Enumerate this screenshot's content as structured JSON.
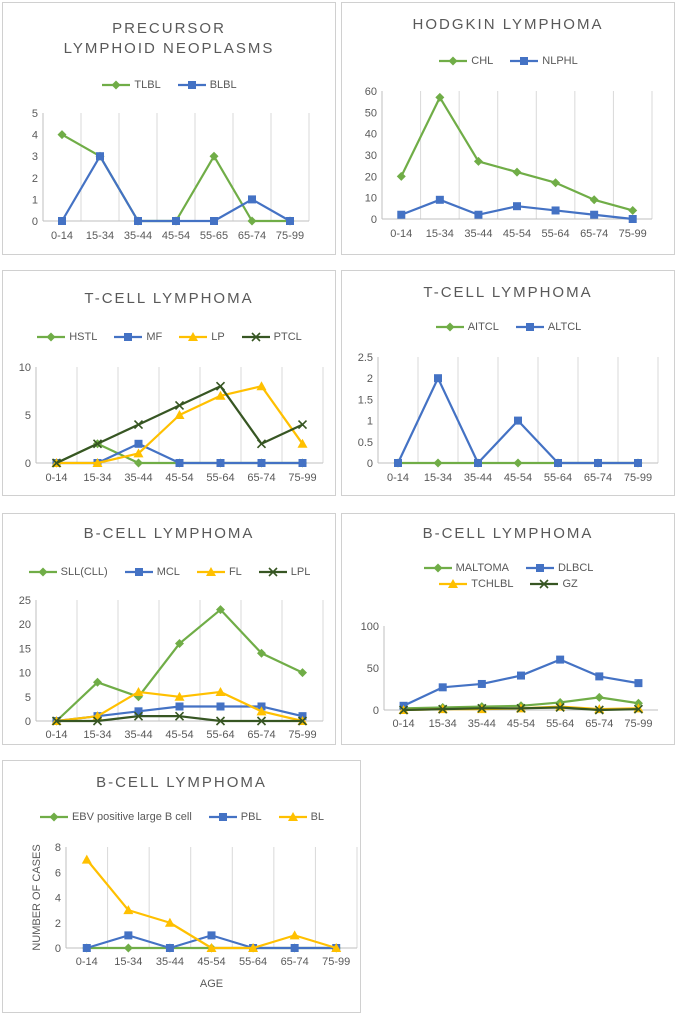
{
  "colors": {
    "green": "#70ad47",
    "blue": "#4472c4",
    "yellow": "#ffc000",
    "darkgreen": "#375623",
    "grid": "#d9d9d9",
    "axis": "#bfbfbf",
    "text": "#595959"
  },
  "chart_data": [
    {
      "id": "p1",
      "type": "line",
      "title": "PRECURSOR LYMPHOID NEOPLASMS",
      "categories": [
        "0-14",
        "15-34",
        "35-44",
        "45-54",
        "55-65",
        "65-74",
        "75-99"
      ],
      "yticks": [
        0,
        1,
        2,
        3,
        4,
        5
      ],
      "ylim": [
        0,
        5
      ],
      "vgrid": true,
      "series": [
        {
          "name": "TLBL",
          "color": "green",
          "marker": "diamond",
          "values": [
            4,
            3,
            0,
            0,
            3,
            0,
            0
          ]
        },
        {
          "name": "BLBL",
          "color": "blue",
          "marker": "square",
          "values": [
            0,
            3,
            0,
            0,
            0,
            1,
            0
          ]
        }
      ]
    },
    {
      "id": "p2",
      "type": "line",
      "title": "HODGKIN LYMPHOMA",
      "categories": [
        "0-14",
        "15-34",
        "35-44",
        "45-54",
        "55-64",
        "65-74",
        "75-99"
      ],
      "yticks": [
        0,
        10,
        20,
        30,
        40,
        50,
        60
      ],
      "ylim": [
        0,
        60
      ],
      "vgrid": true,
      "series": [
        {
          "name": "CHL",
          "color": "green",
          "marker": "diamond",
          "values": [
            20,
            57,
            27,
            22,
            17,
            9,
            4
          ]
        },
        {
          "name": "NLPHL",
          "color": "blue",
          "marker": "square",
          "values": [
            2,
            9,
            2,
            6,
            4,
            2,
            0
          ]
        }
      ]
    },
    {
      "id": "p3",
      "type": "line",
      "title": "T-CELL LYMPHOMA",
      "categories": [
        "0-14",
        "15-34",
        "35-44",
        "45-54",
        "55-64",
        "65-74",
        "75-99"
      ],
      "yticks": [
        0,
        5,
        10
      ],
      "ylim": [
        0,
        10
      ],
      "vgrid": true,
      "series": [
        {
          "name": "HSTL",
          "color": "green",
          "marker": "diamond",
          "values": [
            0,
            2,
            0,
            0,
            0,
            0,
            0
          ]
        },
        {
          "name": "MF",
          "color": "blue",
          "marker": "square",
          "values": [
            0,
            0,
            2,
            0,
            0,
            0,
            0
          ]
        },
        {
          "name": "LP",
          "color": "yellow",
          "marker": "triangle",
          "values": [
            0,
            0,
            1,
            5,
            7,
            8,
            2
          ]
        },
        {
          "name": "PTCL",
          "color": "darkgreen",
          "marker": "x",
          "values": [
            0,
            2,
            4,
            6,
            8,
            2,
            4
          ]
        }
      ]
    },
    {
      "id": "p4",
      "type": "line",
      "title": "T-CELL LYMPHOMA",
      "categories": [
        "0-14",
        "15-34",
        "35-44",
        "45-54",
        "55-64",
        "65-74",
        "75-99"
      ],
      "yticks": [
        0,
        0.5,
        1,
        1.5,
        2,
        2.5
      ],
      "ylim": [
        0,
        2.5
      ],
      "vgrid": true,
      "series": [
        {
          "name": "AITCL",
          "color": "green",
          "marker": "diamond",
          "values": [
            0,
            0,
            0,
            0,
            0,
            0,
            0
          ]
        },
        {
          "name": "ALTCL",
          "color": "blue",
          "marker": "square",
          "values": [
            0,
            2,
            0,
            1,
            0,
            0,
            0
          ]
        }
      ]
    },
    {
      "id": "p5",
      "type": "line",
      "title": "B-CELL LYMPHOMA",
      "categories": [
        "0-14",
        "15-34",
        "35-44",
        "45-54",
        "55-64",
        "65-74",
        "75-99"
      ],
      "yticks": [
        0,
        5,
        10,
        15,
        20,
        25
      ],
      "ylim": [
        0,
        25
      ],
      "vgrid": true,
      "series": [
        {
          "name": "SLL(CLL)",
          "color": "green",
          "marker": "diamond",
          "values": [
            0,
            8,
            5,
            16,
            23,
            14,
            10
          ]
        },
        {
          "name": "MCL",
          "color": "blue",
          "marker": "square",
          "values": [
            0,
            1,
            2,
            3,
            3,
            3,
            1
          ]
        },
        {
          "name": "FL",
          "color": "yellow",
          "marker": "triangle",
          "values": [
            0,
            1,
            6,
            5,
            6,
            2,
            0
          ]
        },
        {
          "name": "LPL",
          "color": "darkgreen",
          "marker": "x",
          "values": [
            0,
            0,
            1,
            1,
            0,
            0,
            0
          ]
        }
      ]
    },
    {
      "id": "p6",
      "type": "line",
      "title": "B-CELL LYMPHOMA",
      "categories": [
        "0-14",
        "15-34",
        "35-44",
        "45-54",
        "55-64",
        "65-74",
        "75-99"
      ],
      "yticks": [
        0,
        50,
        100
      ],
      "ylim": [
        0,
        100
      ],
      "vgrid": false,
      "series": [
        {
          "name": "MALTOMA",
          "color": "green",
          "marker": "diamond",
          "values": [
            2,
            3,
            4,
            5,
            9,
            15,
            8
          ]
        },
        {
          "name": "DLBCL",
          "color": "blue",
          "marker": "square",
          "values": [
            5,
            27,
            31,
            41,
            60,
            40,
            32
          ]
        },
        {
          "name": "TCHLBL",
          "color": "yellow",
          "marker": "triangle",
          "values": [
            0,
            1,
            1,
            2,
            4,
            1,
            2
          ]
        },
        {
          "name": "GZ",
          "color": "darkgreen",
          "marker": "x",
          "values": [
            0,
            1,
            2,
            2,
            3,
            0,
            1
          ]
        }
      ]
    },
    {
      "id": "p7",
      "type": "line",
      "title": "B-CELL LYMPHOMA",
      "categories": [
        "0-14",
        "15-34",
        "35-44",
        "45-54",
        "55-64",
        "65-74",
        "75-99"
      ],
      "yticks": [
        0,
        2,
        4,
        6,
        8
      ],
      "ylim": [
        0,
        8
      ],
      "vgrid": true,
      "ylabel": "NUMBER OF CASES",
      "xlabel": "AGE",
      "series": [
        {
          "name": "EBV positive large B cell",
          "color": "green",
          "marker": "diamond",
          "values": [
            0,
            0,
            0,
            0,
            0,
            0,
            0
          ]
        },
        {
          "name": "PBL",
          "color": "blue",
          "marker": "square",
          "values": [
            0,
            1,
            0,
            1,
            0,
            0,
            0
          ]
        },
        {
          "name": "BL",
          "color": "yellow",
          "marker": "triangle",
          "values": [
            7,
            3,
            2,
            0,
            0,
            1,
            0
          ]
        }
      ]
    }
  ]
}
